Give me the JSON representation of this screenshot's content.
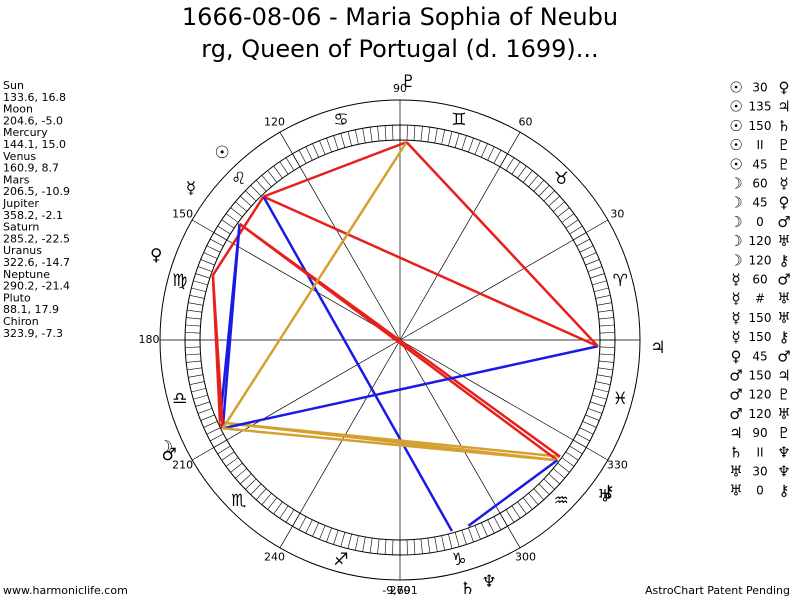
{
  "title_lines": [
    "1666-08-06 - Maria Sophia of Neubu",
    "rg, Queen of Portugal (d. 1699)..."
  ],
  "planets": [
    {
      "name": "Sun",
      "glyph": "☉",
      "label": "133.6, 16.8",
      "lon": 133.6,
      "dec": 16.8
    },
    {
      "name": "Moon",
      "glyph": "☽",
      "label": "204.6, -5.0",
      "lon": 204.6,
      "dec": -5.0
    },
    {
      "name": "Mercury",
      "glyph": "☿",
      "label": "144.1, 15.0",
      "lon": 144.1,
      "dec": 15.0
    },
    {
      "name": "Venus",
      "glyph": "♀",
      "label": "160.9, 8.7",
      "lon": 160.9,
      "dec": 8.7
    },
    {
      "name": "Mars",
      "glyph": "♂",
      "label": "206.5, -10.9",
      "lon": 206.5,
      "dec": -10.9
    },
    {
      "name": "Jupiter",
      "glyph": "♃",
      "label": "358.2, -2.1",
      "lon": 358.2,
      "dec": -2.1
    },
    {
      "name": "Saturn",
      "glyph": "♄",
      "label": "285.2, -22.5",
      "lon": 285.2,
      "dec": -22.5
    },
    {
      "name": "Uranus",
      "glyph": "♅",
      "label": "322.6, -14.7",
      "lon": 322.6,
      "dec": -14.7
    },
    {
      "name": "Neptune",
      "glyph": "♆",
      "label": "290.2, -21.4",
      "lon": 290.2,
      "dec": -21.4
    },
    {
      "name": "Pluto",
      "glyph": "♇",
      "label": "88.1, 17.9",
      "lon": 88.1,
      "dec": 17.9
    },
    {
      "name": "Chiron",
      "glyph": "⚷",
      "label": "323.9, -7.3",
      "lon": 323.9,
      "dec": -7.3
    }
  ],
  "aspects": [
    {
      "from": "☉",
      "aspect": "30",
      "to": "♀",
      "color": "#e8201c"
    },
    {
      "from": "☉",
      "aspect": "135",
      "to": "♃",
      "color": "#e8201c"
    },
    {
      "from": "☉",
      "aspect": "150",
      "to": "♄",
      "color": "#1a1ae6"
    },
    {
      "from": "☉",
      "aspect": "II",
      "to": "♇"
    },
    {
      "from": "☉",
      "aspect": "45",
      "to": "♇",
      "color": "#e8201c"
    },
    {
      "from": "☽",
      "aspect": "60",
      "to": "☿",
      "color": "#1a1ae6"
    },
    {
      "from": "☽",
      "aspect": "45",
      "to": "♀",
      "color": "#e8201c"
    },
    {
      "from": "☽",
      "aspect": "0",
      "to": "♂",
      "color": "#e8201c"
    },
    {
      "from": "☽",
      "aspect": "120",
      "to": "♅",
      "color": "#d4a030"
    },
    {
      "from": "☽",
      "aspect": "120",
      "to": "⚷",
      "color": "#d4a030"
    },
    {
      "from": "☿",
      "aspect": "60",
      "to": "♂",
      "color": "#1a1ae6"
    },
    {
      "from": "☿",
      "aspect": "#",
      "to": "♅"
    },
    {
      "from": "☿",
      "aspect": "150",
      "to": "♅",
      "color": "#e8201c"
    },
    {
      "from": "☿",
      "aspect": "150",
      "to": "⚷",
      "color": "#e8201c"
    },
    {
      "from": "♀",
      "aspect": "45",
      "to": "♂",
      "color": "#e8201c"
    },
    {
      "from": "♂",
      "aspect": "150",
      "to": "♃",
      "color": "#1a1ae6"
    },
    {
      "from": "♂",
      "aspect": "120",
      "to": "♇",
      "color": "#d4a030"
    },
    {
      "from": "♂",
      "aspect": "120",
      "to": "♅",
      "color": "#d4a030"
    },
    {
      "from": "♃",
      "aspect": "90",
      "to": "♇",
      "color": "#e8201c"
    },
    {
      "from": "♄",
      "aspect": "II",
      "to": "♆"
    },
    {
      "from": "♅",
      "aspect": "30",
      "to": "♆",
      "color": "#1a1ae6"
    },
    {
      "from": "♅",
      "aspect": "0",
      "to": "⚷"
    }
  ],
  "zodiac": [
    "♈",
    "♉",
    "♊",
    "♋",
    "♌",
    "♍",
    "♎",
    "♏",
    "♐",
    "♑",
    "♒",
    "♓"
  ],
  "degree_labels": [
    30,
    60,
    90,
    120,
    150,
    180,
    210,
    240,
    270,
    300,
    330
  ],
  "bottom_number": "-9,691",
  "footer_left": "www.harmoniclife.com",
  "footer_right": "AstroChart Patent Pending"
}
